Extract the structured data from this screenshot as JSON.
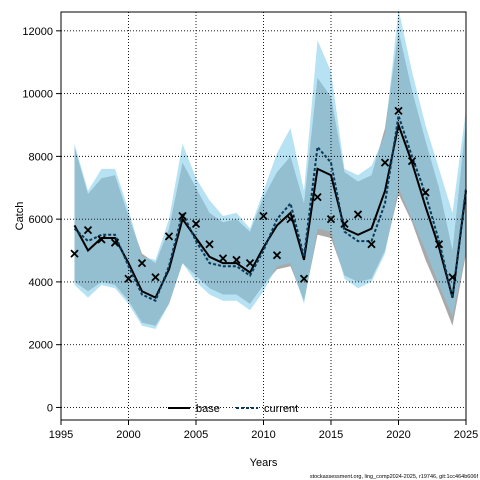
{
  "chart_data": {
    "type": "line",
    "xlabel": "Years",
    "ylabel": "Catch",
    "xlim": [
      1995,
      2025
    ],
    "ylim": [
      -400,
      12600
    ],
    "x_ticks": [
      1995,
      2000,
      2005,
      2010,
      2015,
      2020,
      2025
    ],
    "y_ticks": [
      0,
      2000,
      4000,
      6000,
      8000,
      10000,
      12000
    ],
    "grid": true,
    "legend": {
      "placement": "bottom-center"
    },
    "footnote": "stockassessment.org, ling_comp2024-2025, r19746, git:1cc464b606f",
    "colors": {
      "base_line": "#000000",
      "base_band": "#8c8c8c",
      "current_line": "#0a3a5a",
      "current_band": "#87ceeb",
      "observed": "#000000"
    },
    "x": [
      1996,
      1997,
      1998,
      1999,
      2000,
      2001,
      2002,
      2003,
      2004,
      2005,
      2006,
      2007,
      2008,
      2009,
      2010,
      2011,
      2012,
      2013,
      2014,
      2015,
      2016,
      2017,
      2018,
      2019,
      2020,
      2021,
      2022,
      2023,
      2024,
      2025
    ],
    "series": [
      {
        "name": "base",
        "values": [
          5800,
          5000,
          5400,
          5400,
          4600,
          3700,
          3500,
          4400,
          6000,
          5400,
          4800,
          4600,
          4600,
          4300,
          5100,
          5800,
          6200,
          4700,
          7600,
          7400,
          5700,
          5500,
          5700,
          6900,
          9000,
          7800,
          6400,
          5100,
          3500,
          6900
        ],
        "lower": [
          4000,
          3700,
          4000,
          3900,
          3400,
          2700,
          2600,
          3300,
          4600,
          4200,
          3800,
          3600,
          3600,
          3300,
          3900,
          4400,
          4500,
          3400,
          5500,
          5400,
          4200,
          4000,
          4100,
          5000,
          6800,
          5900,
          4700,
          3700,
          2600,
          4900
        ],
        "upper": [
          8300,
          6800,
          7300,
          7400,
          6100,
          4900,
          4600,
          5700,
          7800,
          7000,
          6200,
          5900,
          6000,
          5600,
          6700,
          7500,
          8000,
          6500,
          10500,
          9900,
          7500,
          7200,
          7400,
          8900,
          12000,
          10100,
          8500,
          7000,
          5000,
          9100
        ]
      },
      {
        "name": "current",
        "values": [
          5700,
          5300,
          5500,
          5500,
          4500,
          3600,
          3400,
          4500,
          6200,
          5300,
          4600,
          4500,
          4500,
          4200,
          5000,
          6000,
          6500,
          4800,
          8300,
          7800,
          5600,
          5300,
          5300,
          6500,
          9300,
          8000,
          6800,
          5300,
          3500,
          7000
        ],
        "lower": [
          3900,
          3500,
          3900,
          3800,
          3300,
          2600,
          2500,
          3300,
          4600,
          4000,
          3600,
          3400,
          3400,
          3100,
          3700,
          4500,
          4600,
          3300,
          5700,
          5600,
          4100,
          3800,
          4000,
          4900,
          7000,
          6000,
          5000,
          3900,
          2900,
          5000
        ],
        "upper": [
          8400,
          6900,
          7600,
          7600,
          6300,
          4800,
          4700,
          6000,
          8400,
          7300,
          6600,
          6100,
          6200,
          5700,
          6900,
          8100,
          8900,
          6900,
          11700,
          10700,
          7600,
          7400,
          7700,
          8700,
          12700,
          10700,
          9000,
          7600,
          6200,
          9500
        ]
      },
      {
        "name": "observed",
        "values": [
          4900,
          5650,
          5350,
          5250,
          4100,
          4600,
          4150,
          5450,
          6100,
          5850,
          5200,
          4750,
          4700,
          4600,
          6100,
          4850,
          6000,
          4100,
          6700,
          6000,
          5850,
          6150,
          5200,
          7800,
          9450,
          7850,
          6850,
          5200,
          4150,
          null
        ]
      }
    ],
    "legend_entries": [
      "base",
      "current"
    ]
  }
}
